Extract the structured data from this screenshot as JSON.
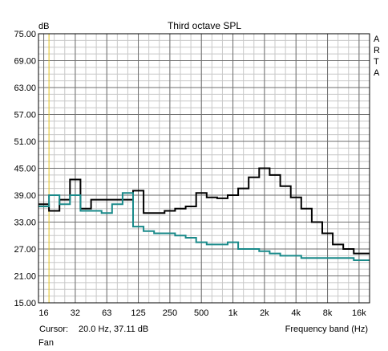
{
  "chart_data": {
    "type": "line",
    "title": "Third octave SPL",
    "ylabel": "dB",
    "xlabel": "Frequency band (Hz)",
    "side_label": [
      "A",
      "R",
      "T",
      "A"
    ],
    "ylim": [
      15,
      75
    ],
    "yticks": [
      "75.00",
      "69.00",
      "63.00",
      "57.00",
      "51.00",
      "45.00",
      "39.00",
      "33.00",
      "27.00",
      "21.00",
      "15.00"
    ],
    "xticks": [
      {
        "band": 0,
        "label": "16"
      },
      {
        "band": 3,
        "label": "32"
      },
      {
        "band": 6,
        "label": "63"
      },
      {
        "band": 9,
        "label": "125"
      },
      {
        "band": 12,
        "label": "250"
      },
      {
        "band": 15,
        "label": "500"
      },
      {
        "band": 18,
        "label": "1k"
      },
      {
        "band": 21,
        "label": "2k"
      },
      {
        "band": 24,
        "label": "4k"
      },
      {
        "band": 27,
        "label": "8k"
      },
      {
        "band": 30,
        "label": "16k"
      }
    ],
    "band_count": 32,
    "grid": true,
    "cursor": {
      "band": 1,
      "color": "#e0c020"
    },
    "series": [
      {
        "color": "#000000",
        "values": [
          37,
          35.5,
          38,
          42.5,
          36,
          38,
          38,
          38,
          38,
          40,
          35,
          35,
          35.5,
          36,
          36.5,
          39.5,
          38.5,
          38.3,
          39,
          40.5,
          43,
          45,
          43.5,
          41,
          38.5,
          36,
          33,
          30.5,
          28,
          27,
          26,
          26
        ]
      },
      {
        "color": "#1a8a8a",
        "values": [
          36.5,
          39,
          37,
          39,
          35.5,
          35.5,
          35,
          37,
          39.5,
          32,
          31,
          30.5,
          30.5,
          30,
          29.5,
          28.5,
          28,
          28,
          28.5,
          27,
          27,
          26.5,
          26,
          25.5,
          25.5,
          25,
          25,
          25,
          25,
          25,
          24.5,
          24.5
        ]
      }
    ]
  },
  "footer": {
    "cursor_label": "Cursor:",
    "cursor_value": "20.0 Hz, 37.11 dB",
    "channel_name": "Fan"
  }
}
